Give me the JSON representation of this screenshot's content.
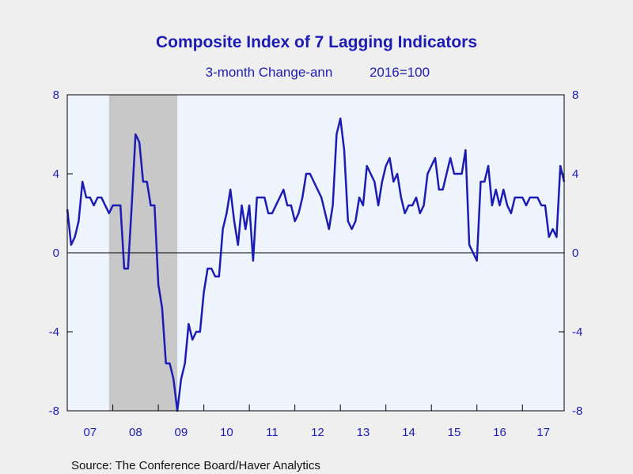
{
  "chart_data": {
    "type": "line",
    "title": "Composite Index of 7 Lagging Indicators",
    "subtitle_left": "3-month Change-ann",
    "subtitle_right": "2016=100",
    "source": "Source:  The Conference Board/Haver Analytics",
    "xlabel": "",
    "ylabel": "",
    "ylim": [
      -8,
      8
    ],
    "yticks": [
      8,
      4,
      0,
      -4,
      -8
    ],
    "ytick_labels": [
      "8",
      "4",
      "0",
      "-4",
      "-8"
    ],
    "xlim": [
      2006.999,
      2017.917
    ],
    "xtick_labels": [
      "07",
      "08",
      "09",
      "10",
      "11",
      "12",
      "13",
      "14",
      "15",
      "16",
      "17"
    ],
    "grid": false,
    "legend": "none",
    "zero_line": true,
    "recession_shading": {
      "start": 2007.917,
      "end": 2009.417,
      "color": "#c8c8c8"
    },
    "colors": {
      "line": "#1c1cb4",
      "plot_bg": "#eef5fe",
      "page_bg": "#efefef",
      "text": "#1c1cb4"
    },
    "series": [
      {
        "values": [
          2.2,
          0.4,
          0.8,
          1.6,
          3.6,
          2.8,
          2.8,
          2.4,
          2.8,
          2.8,
          2.4,
          2.0,
          2.4,
          2.4,
          2.4,
          -0.8,
          -0.8,
          2.4,
          6.0,
          5.6,
          3.6,
          3.6,
          2.4,
          2.4,
          -1.6,
          -2.8,
          -5.6,
          -5.6,
          -6.4,
          -8.0,
          -6.4,
          -5.6,
          -3.6,
          -4.4,
          -4.0,
          -4.0,
          -2.0,
          -0.8,
          -0.8,
          -1.2,
          -1.2,
          1.2,
          2.0,
          3.2,
          1.6,
          0.4,
          2.4,
          1.2,
          2.4,
          -0.4,
          2.8,
          2.8,
          2.8,
          2.0,
          2.0,
          2.4,
          2.8,
          3.2,
          2.4,
          2.4,
          1.6,
          2.0,
          2.8,
          4.0,
          4.0,
          3.6,
          3.2,
          2.8,
          2.0,
          1.2,
          2.4,
          6.0,
          6.8,
          5.2,
          1.6,
          1.2,
          1.6,
          2.8,
          2.4,
          4.4,
          4.0,
          3.6,
          2.4,
          3.6,
          4.4,
          4.8,
          3.6,
          4.0,
          2.8,
          2.0,
          2.4,
          2.4,
          2.8,
          2.0,
          2.4,
          4.0,
          4.4,
          4.8,
          3.2,
          3.2,
          4.0,
          4.8,
          4.0,
          4.0,
          4.0,
          5.2,
          0.4,
          0.0,
          -0.4,
          3.6,
          3.6,
          4.4,
          2.4,
          3.2,
          2.4,
          3.2,
          2.4,
          2.0,
          2.8,
          2.8,
          2.8,
          2.4,
          2.8,
          2.8,
          2.8,
          2.4,
          2.4,
          0.8,
          1.2,
          0.8,
          4.4,
          3.6
        ]
      }
    ]
  }
}
